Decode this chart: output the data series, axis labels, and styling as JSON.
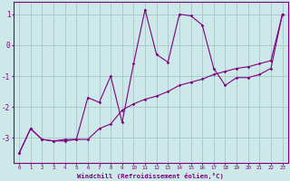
{
  "xlabel": "Windchill (Refroidissement éolien,°C)",
  "x_hours": [
    0,
    1,
    2,
    3,
    4,
    5,
    6,
    7,
    8,
    9,
    10,
    11,
    12,
    13,
    14,
    15,
    16,
    17,
    18,
    19,
    20,
    21,
    22,
    23
  ],
  "line1_y": [
    -3.5,
    -2.7,
    -3.05,
    -3.1,
    -3.05,
    -3.05,
    -1.7,
    -1.85,
    -1.0,
    -2.5,
    -0.6,
    1.15,
    -0.3,
    -0.55,
    1.0,
    0.95,
    0.65,
    -0.75,
    -1.3,
    -1.05,
    -1.05,
    -0.95,
    -0.75,
    1.0
  ],
  "line2_y": [
    -3.5,
    -2.7,
    -3.05,
    -3.1,
    -3.1,
    -3.05,
    -3.05,
    -2.7,
    -2.55,
    -2.1,
    -1.9,
    -1.75,
    -1.65,
    -1.5,
    -1.3,
    -1.2,
    -1.1,
    -0.95,
    -0.85,
    -0.75,
    -0.7,
    -0.6,
    -0.5,
    1.0
  ],
  "line_color": "#800080",
  "bg_color": "#cce8e8",
  "grid_color": "#aacccc",
  "ylim": [
    -3.8,
    1.4
  ],
  "xlim": [
    -0.5,
    23.5
  ],
  "yticks": [
    -3,
    -2,
    -1,
    0,
    1
  ],
  "xtick_labels": [
    "0",
    "1",
    "2",
    "3",
    "4",
    "5",
    "6",
    "7",
    "8",
    "9",
    "10",
    "11",
    "12",
    "13",
    "14",
    "15",
    "16",
    "17",
    "18",
    "19",
    "20",
    "21",
    "22",
    "23"
  ]
}
